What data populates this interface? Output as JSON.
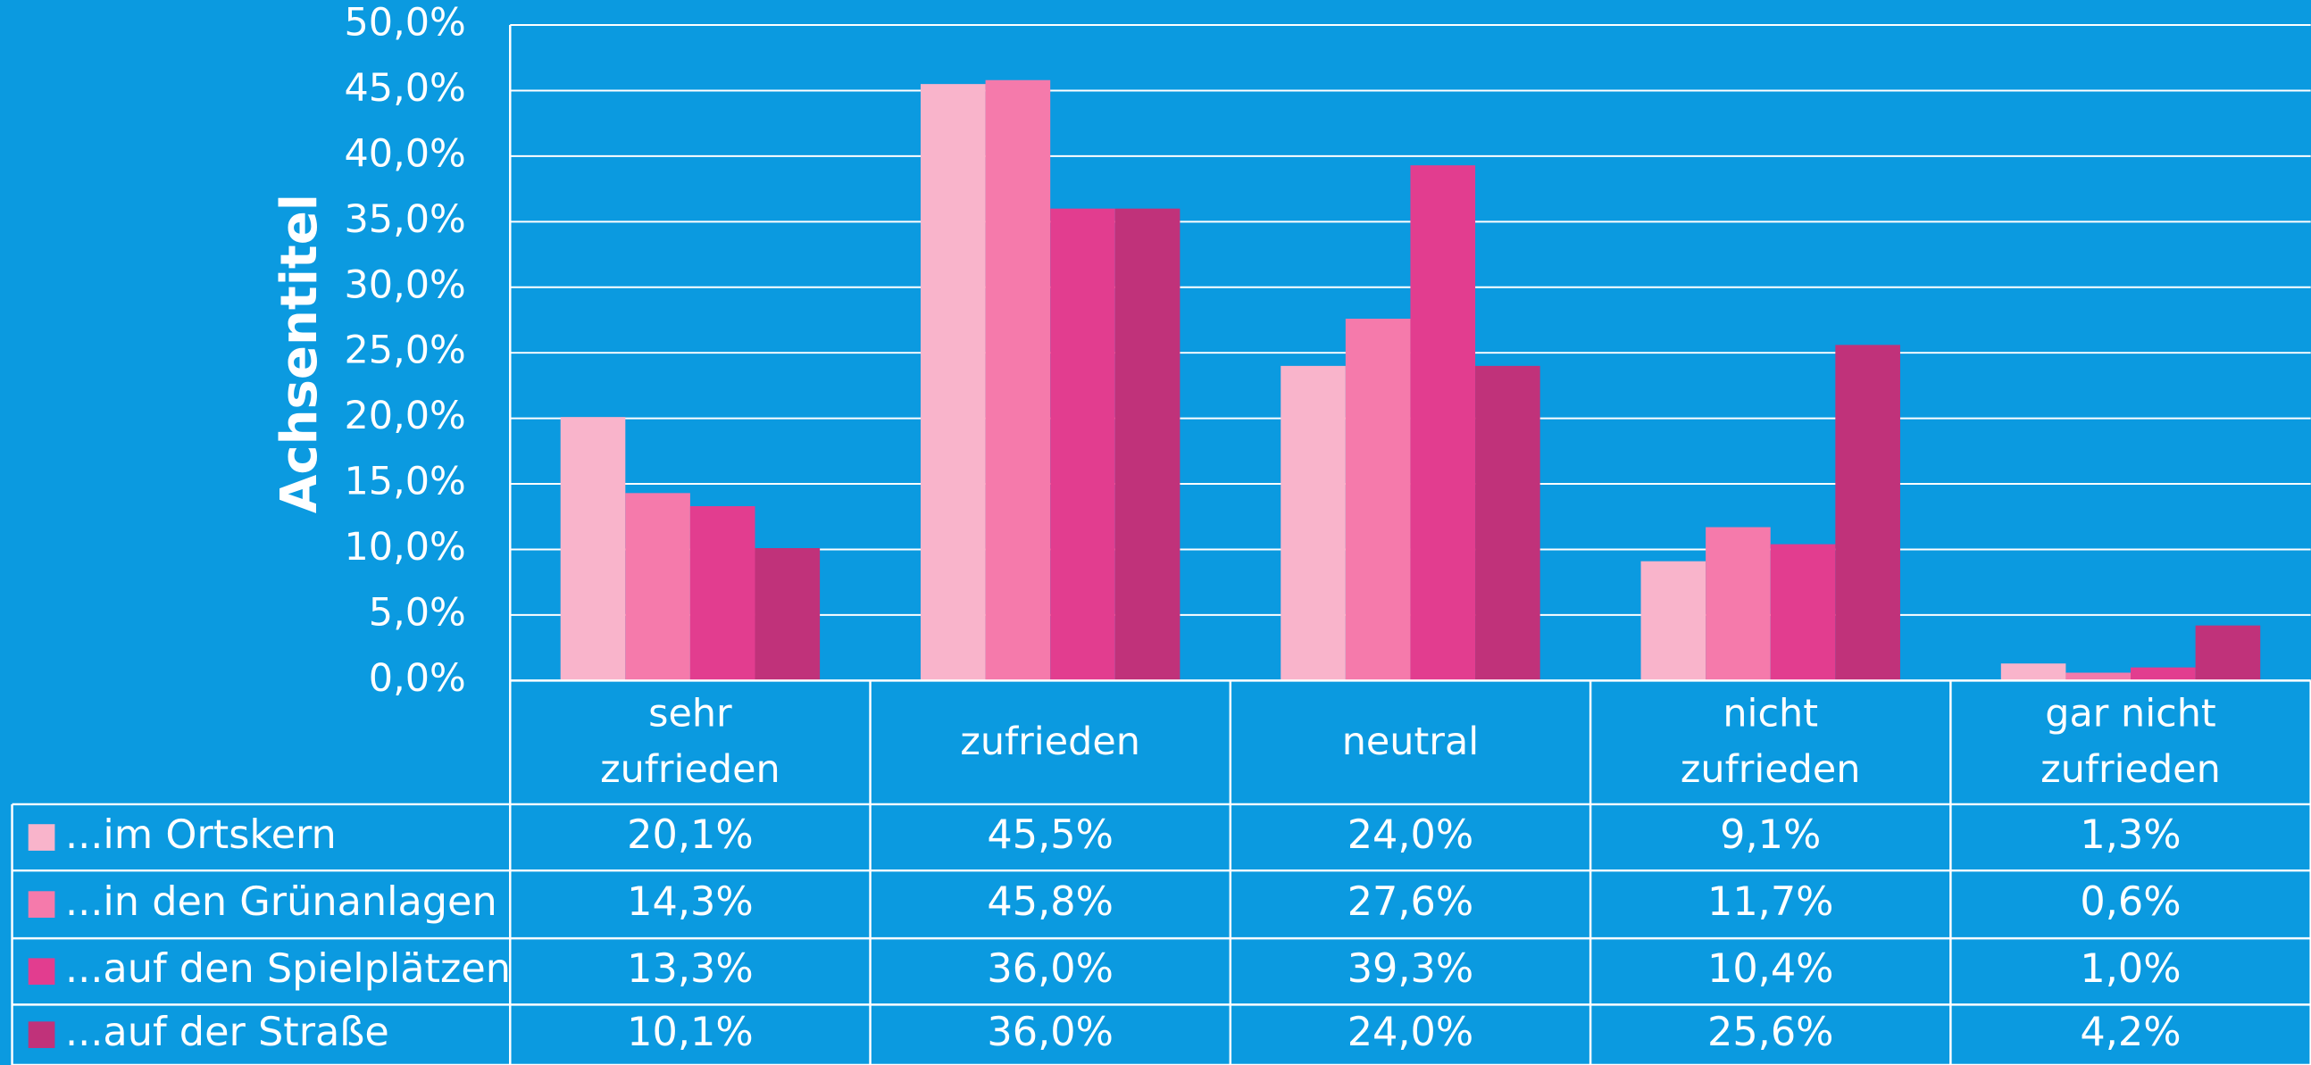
{
  "chart_data": {
    "type": "bar",
    "y_label": "Achsentitel",
    "categories": [
      "sehr zufrieden",
      "zufrieden",
      "neutral",
      "nicht zufrieden",
      "gar nicht zufrieden"
    ],
    "series": [
      {
        "name": "...im Ortskern",
        "color": "#f9b4cb",
        "values": [
          20.1,
          45.5,
          24.0,
          9.1,
          1.3
        ],
        "value_labels": [
          "20,1%",
          "45,5%",
          "24,0%",
          "9,1%",
          "1,3%"
        ]
      },
      {
        "name": "...in den Grünanlagen",
        "color": "#f57aab",
        "values": [
          14.3,
          45.8,
          27.6,
          11.7,
          0.6
        ],
        "value_labels": [
          "14,3%",
          "45,8%",
          "27,6%",
          "11,7%",
          "0,6%"
        ]
      },
      {
        "name": "...auf den Spielplätzen",
        "color": "#e23d8f",
        "values": [
          13.3,
          36.0,
          39.3,
          10.4,
          1.0
        ],
        "value_labels": [
          "13,3%",
          "36,0%",
          "39,3%",
          "10,4%",
          "1,0%"
        ]
      },
      {
        "name": "...auf der Straße",
        "color": "#c0327a",
        "values": [
          10.1,
          36.0,
          24.0,
          25.6,
          4.2
        ],
        "value_labels": [
          "10,1%",
          "36,0%",
          "24,0%",
          "25,6%",
          "4,2%"
        ]
      }
    ],
    "ylim": [
      0,
      50
    ],
    "yticks": [
      {
        "value": 0,
        "label": "0,0%"
      },
      {
        "value": 5,
        "label": "5,0%"
      },
      {
        "value": 10,
        "label": "10,0%"
      },
      {
        "value": 15,
        "label": "15,0%"
      },
      {
        "value": 20,
        "label": "20,0%"
      },
      {
        "value": 25,
        "label": "25,0%"
      },
      {
        "value": 30,
        "label": "30,0%"
      },
      {
        "value": 35,
        "label": "35,0%"
      },
      {
        "value": 40,
        "label": "40,0%"
      },
      {
        "value": 45,
        "label": "45,0%"
      },
      {
        "value": 50,
        "label": "50,0%"
      }
    ],
    "grid": true,
    "legend": "table"
  }
}
